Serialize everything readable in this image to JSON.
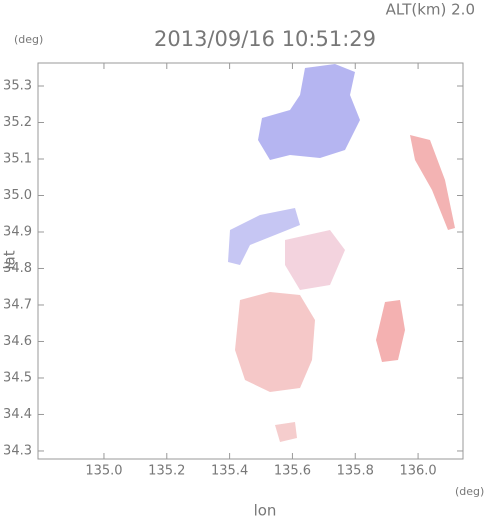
{
  "chart_data": {
    "type": "map",
    "title": "2013/09/16 10:51:29",
    "altitude_label": "ALT(km)  2.0",
    "y_unit": "(deg)",
    "x_unit": "(deg)",
    "xlabel": "lon",
    "ylabel": "lat",
    "xlim": [
      134.79,
      136.143
    ],
    "ylim": [
      34.278,
      35.363
    ],
    "xticks": [
      {
        "value": 135,
        "label": "135.0"
      },
      135.2,
      135.4,
      135.6,
      135.8,
      {
        "value": 136,
        "label": "136.0"
      }
    ],
    "yticks": [
      34.3,
      34.4,
      34.5,
      34.6,
      34.7,
      34.8,
      34.9,
      {
        "value": 35,
        "label": "35.0"
      },
      35.1,
      35.2,
      35.3
    ]
  }
}
